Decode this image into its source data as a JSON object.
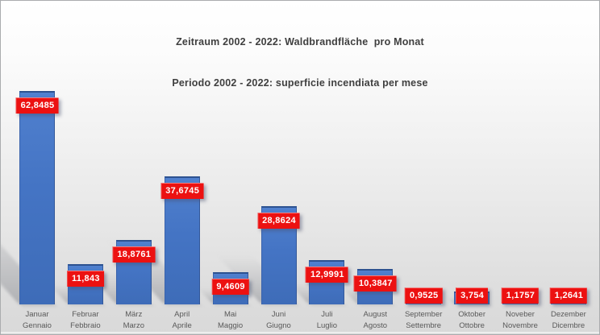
{
  "title": {
    "line1_de": "Zeitraum 2002 - 2022: Waldbrandfläche  pro Monat",
    "line2_it": "Periodo 2002 - 2022: superficie incendiata per mese"
  },
  "colors": {
    "bar_fill": "#4472c4",
    "bar_cap": "#2d5290",
    "value_label_bg": "#ec1111",
    "value_label_text": "#ffffff",
    "title_text": "#3f3f3f",
    "axis_text": "#595959",
    "background_top": "#ffffff",
    "background_bottom": "#d9d9d9"
  },
  "chart_data": {
    "type": "bar",
    "title": "Zeitraum 2002 - 2022: Waldbrandfläche  pro Monat",
    "subtitle": "Periodo 2002 - 2022: superficie incendiata per mese",
    "categories": [
      {
        "de": "Januar",
        "it": "Gennaio"
      },
      {
        "de": "Februar",
        "it": "Febbraio"
      },
      {
        "de": "März",
        "it": "Marzo"
      },
      {
        "de": "April",
        "it": "Aprile"
      },
      {
        "de": "Mai",
        "it": "Maggio"
      },
      {
        "de": "Juni",
        "it": "Giugno"
      },
      {
        "de": "Juli",
        "it": "Luglio"
      },
      {
        "de": "August",
        "it": "Agosto"
      },
      {
        "de": "September",
        "it": "Settembre"
      },
      {
        "de": "Oktober",
        "it": "Ottobre"
      },
      {
        "de": "Noveber",
        "it": "Novembre"
      },
      {
        "de": "Dezember",
        "it": "Dicembre"
      }
    ],
    "values": [
      62.8485,
      11.843,
      18.8761,
      37.6745,
      9.4609,
      28.8624,
      12.9991,
      10.3847,
      0.9525,
      3.754,
      1.1757,
      1.2641
    ],
    "value_labels": [
      "62,8485",
      "11,843",
      "18,8761",
      "37,6745",
      "9,4609",
      "28,8624",
      "12,9991",
      "10,3847",
      "0,9525",
      "3,754",
      "1,1757",
      "1,2641"
    ],
    "xlabel": "",
    "ylabel": "",
    "ylim": [
      0,
      65
    ],
    "grid": false,
    "legend": null,
    "value_labels_position": "inside-end",
    "decimal_separator": ","
  }
}
